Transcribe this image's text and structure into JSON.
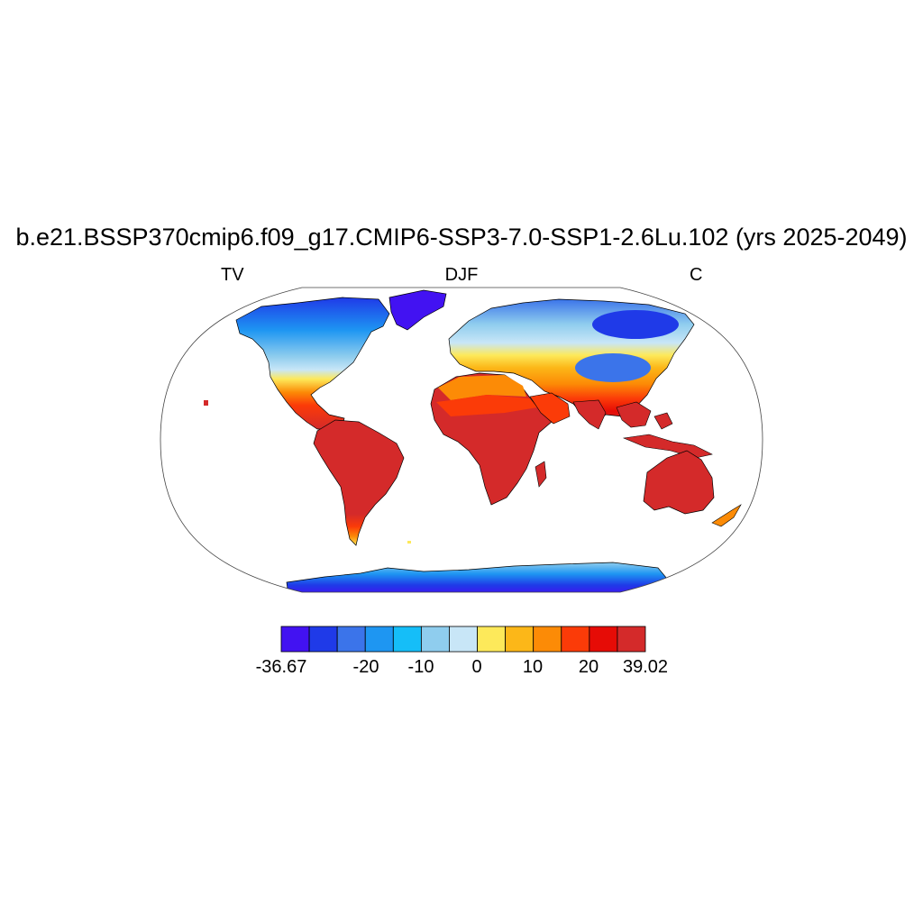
{
  "title": "b.e21.BSSP370cmip6.f09_g17.CMIP6-SSP3-7.0-SSP1-2.6Lu.102 (yrs 2025-2049)",
  "subtitle_left": "TV",
  "subtitle_center": "DJF",
  "subtitle_right": "C",
  "colorbar": {
    "colors": [
      "#4212f2",
      "#1f3ae8",
      "#3b74ea",
      "#1e96f2",
      "#15bef8",
      "#8fcdee",
      "#c8e6f7",
      "#fde95a",
      "#fcb718",
      "#fc8b06",
      "#fb3b08",
      "#e60c06",
      "#d42a2a"
    ],
    "labels": [
      "-36.67",
      "-20",
      "-10",
      "0",
      "10",
      "20",
      "39.02"
    ]
  }
}
